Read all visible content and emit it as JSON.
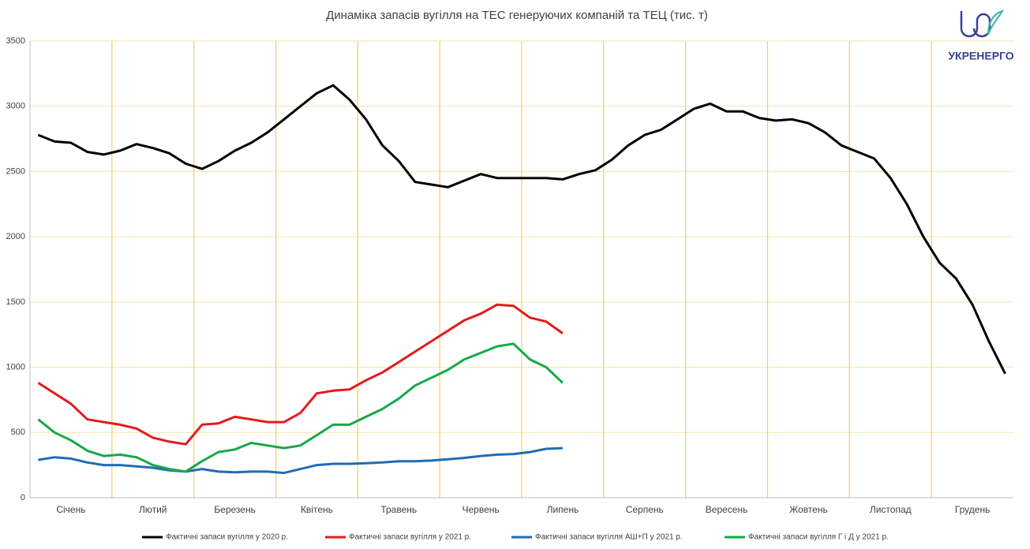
{
  "logo": "УКРЕНЕРГО",
  "chart_data": {
    "type": "line",
    "title": "Динаміка запасів вугілля на ТЕС генеруючих компаній та ТЕЦ (тис. т)",
    "categories": [
      null,
      null,
      "Січень",
      null,
      null,
      null,
      null,
      "Лютий",
      null,
      null,
      null,
      null,
      "Березень",
      null,
      null,
      null,
      null,
      "Квітень",
      null,
      null,
      null,
      null,
      "Травень",
      null,
      null,
      null,
      null,
      "Червень",
      null,
      null,
      null,
      null,
      "Липень",
      null,
      null,
      null,
      null,
      "Серпень",
      null,
      null,
      null,
      null,
      "Вересень",
      null,
      null,
      null,
      null,
      "Жовтень",
      null,
      null,
      null,
      null,
      "Листопад",
      null,
      null,
      null,
      null,
      "Грудень",
      null,
      null
    ],
    "ylim": [
      0,
      3500
    ],
    "yticks": [
      0,
      500,
      1000,
      1500,
      2000,
      2500,
      3000,
      3500
    ],
    "grid": true,
    "series": [
      {
        "name": "Фактичні запаси вугілля у 2020 р.",
        "color": "#000000",
        "values": [
          2780,
          2730,
          2720,
          2650,
          2630,
          2660,
          2710,
          2680,
          2640,
          2560,
          2520,
          2580,
          2660,
          2720,
          2800,
          2900,
          3000,
          3100,
          3160,
          3050,
          2900,
          2700,
          2580,
          2420,
          2400,
          2380,
          2430,
          2480,
          2450,
          2450,
          2450,
          2450,
          2440,
          2480,
          2510,
          2590,
          2700,
          2780,
          2820,
          2900,
          2980,
          3020,
          2960,
          2960,
          2910,
          2890,
          2900,
          2870,
          2800,
          2700,
          2650,
          2600,
          2450,
          2250,
          2000,
          1800,
          1680,
          1480,
          1200,
          950
        ]
      },
      {
        "name": "Фактичні запаси вугілля у 2021 р.",
        "color": "#e41a1c",
        "values": [
          880,
          800,
          720,
          600,
          580,
          560,
          530,
          460,
          430,
          410,
          560,
          570,
          620,
          600,
          580,
          580,
          650,
          800,
          820,
          830,
          900,
          960,
          1040,
          1120,
          1200,
          1280,
          1360,
          1410,
          1480,
          1470,
          1380,
          1350,
          1260,
          null,
          null,
          null,
          null,
          null,
          null,
          null,
          null,
          null,
          null,
          null,
          null,
          null,
          null,
          null,
          null,
          null,
          null,
          null,
          null,
          null,
          null,
          null,
          null,
          null,
          null,
          null
        ]
      },
      {
        "name": "Фактичні запаси вугілля АШ+П у 2021 р.",
        "color": "#1f6db3",
        "values": [
          290,
          310,
          300,
          270,
          250,
          250,
          240,
          230,
          210,
          200,
          220,
          200,
          195,
          200,
          200,
          190,
          220,
          250,
          260,
          260,
          265,
          270,
          280,
          280,
          285,
          295,
          305,
          320,
          330,
          335,
          350,
          375,
          380,
          null,
          null,
          null,
          null,
          null,
          null,
          null,
          null,
          null,
          null,
          null,
          null,
          null,
          null,
          null,
          null,
          null,
          null,
          null,
          null,
          null,
          null,
          null,
          null,
          null,
          null,
          null
        ]
      },
      {
        "name": "Фактичні запаси вугілля Г і Д у 2021 р.",
        "color": "#17a84a",
        "values": [
          600,
          500,
          440,
          360,
          320,
          330,
          310,
          250,
          220,
          200,
          280,
          350,
          370,
          420,
          400,
          380,
          400,
          480,
          560,
          560,
          620,
          680,
          760,
          860,
          920,
          980,
          1060,
          1110,
          1160,
          1180,
          1060,
          1000,
          880,
          null,
          null,
          null,
          null,
          null,
          null,
          null,
          null,
          null,
          null,
          null,
          null,
          null,
          null,
          null,
          null,
          null,
          null,
          null,
          null,
          null,
          null,
          null,
          null,
          null,
          null,
          null
        ]
      }
    ]
  }
}
